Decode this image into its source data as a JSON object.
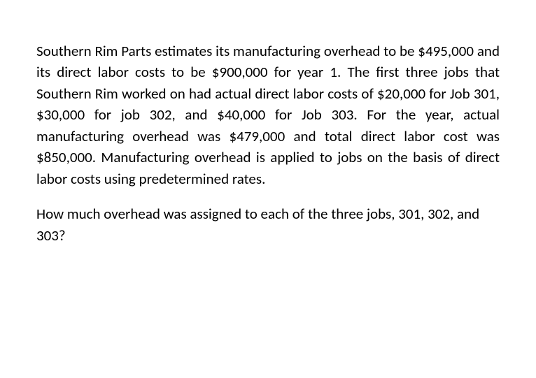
{
  "document": {
    "paragraph1": "Southern Rim Parts estimates its manufacturing overhead to be $495,000 and its direct labor costs to be $900,000 for year 1. The first three jobs that Southern Rim worked on had actual direct labor costs of $20,000 for Job 301, $30,000 for job 302, and $40,000 for Job 303. For the year, actual manufacturing overhead was $479,000 and total direct labor cost was $850,000. Manufacturing overhead is applied to jobs on the basis of direct labor costs using predetermined rates.",
    "question": "How much overhead was assigned to each of the three jobs, 301, 302, and 303?",
    "text_color": "#000000",
    "background_color": "#ffffff",
    "font_size_pt": 16,
    "font_family": "Calibri"
  }
}
